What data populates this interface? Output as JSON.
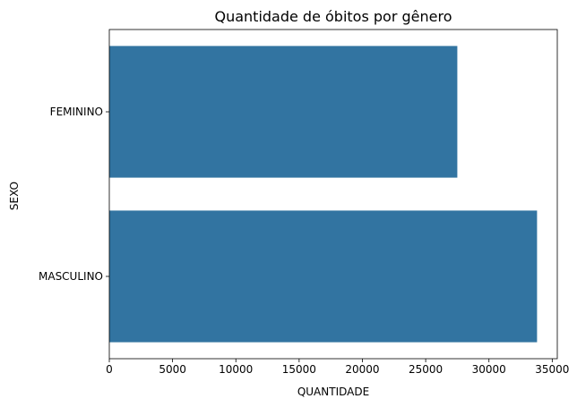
{
  "chart_data": {
    "type": "bar",
    "orientation": "horizontal",
    "title": "Quantidade de óbitos por gênero",
    "xlabel": "QUANTIDADE",
    "ylabel": "SEXO",
    "categories": [
      "FEMININO",
      "MASCULINO"
    ],
    "values": [
      27500,
      33800
    ],
    "xlim": [
      0,
      35400
    ],
    "xticks": [
      "0",
      "5000",
      "10000",
      "15000",
      "20000",
      "25000",
      "30000",
      "35000"
    ],
    "grid": false,
    "bar_color": "#3274a1"
  }
}
